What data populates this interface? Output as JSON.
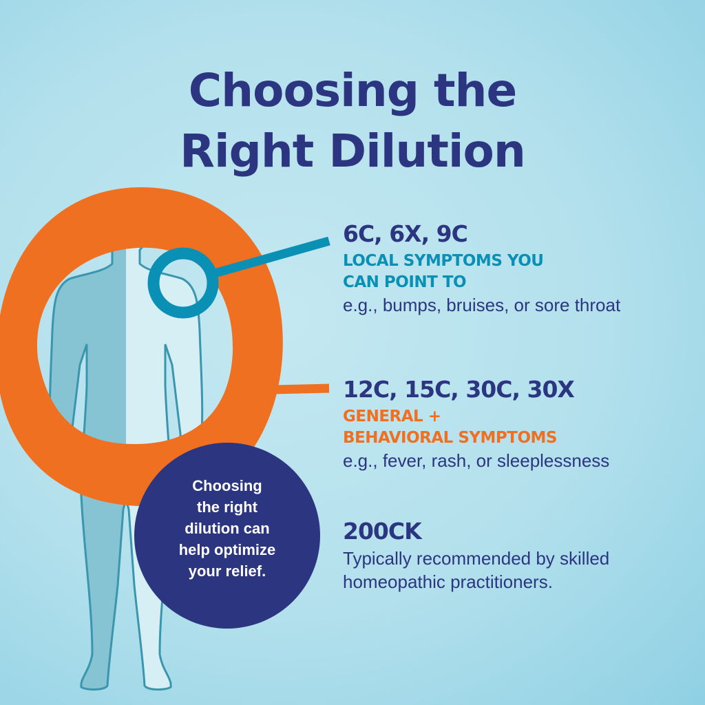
{
  "title": {
    "line1": "Choosing the",
    "line2": "Right Dilution"
  },
  "colors": {
    "navy": "#2b3580",
    "teal": "#0a90b5",
    "orange": "#f07022",
    "background": "#b5e0ec"
  },
  "illustration": {
    "figure": "human-body-silhouette",
    "ring": "orange-brush-circle",
    "magnifier": "teal-magnifying-glass"
  },
  "callout": {
    "lines": [
      "Choosing",
      "the right",
      "dilution can",
      "help optimize",
      "your relief."
    ]
  },
  "sections": [
    {
      "dilutions": "6C, 6X, 9C",
      "category_lines": [
        "LOCAL SYMPTOMS YOU",
        "CAN POINT TO"
      ],
      "category_color": "#0a90b5",
      "example": "e.g., bumps, bruises, or sore throat"
    },
    {
      "dilutions": "12C, 15C, 30C, 30X",
      "category_lines": [
        "GENERAL +",
        "BEHAVIORAL SYMPTOMS"
      ],
      "category_color": "#f07022",
      "example": "e.g., fever, rash, or sleeplessness"
    },
    {
      "dilutions": "200CK",
      "description_lines": [
        "Typically recommended by skilled",
        "homeopathic practitioners."
      ]
    }
  ]
}
